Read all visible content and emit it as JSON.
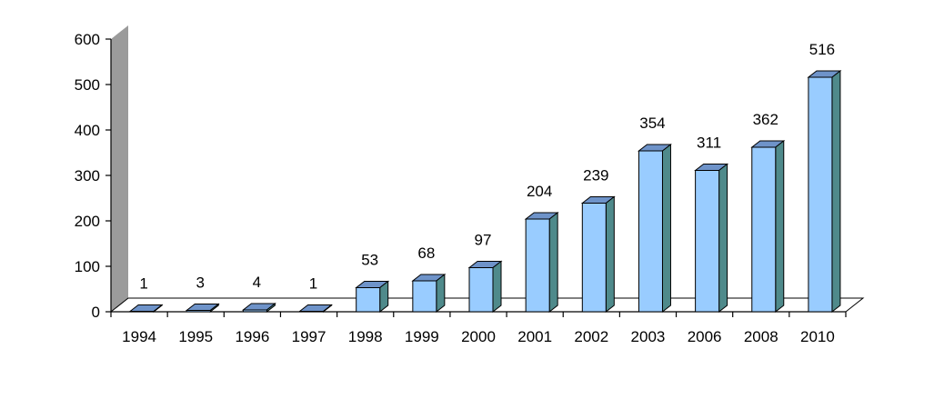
{
  "chart_data": {
    "type": "bar",
    "title": "",
    "xlabel": "",
    "ylabel": "",
    "categories": [
      "1994",
      "1995",
      "1996",
      "1997",
      "1998",
      "1999",
      "2000",
      "2001",
      "2002",
      "2003",
      "2006",
      "2008",
      "2010"
    ],
    "values": [
      1,
      3,
      4,
      1,
      53,
      68,
      97,
      204,
      239,
      354,
      311,
      362,
      516
    ],
    "ylim": [
      0,
      600
    ],
    "yticks": [
      0,
      100,
      200,
      300,
      400,
      500,
      600
    ],
    "ytick_labels": [
      "0",
      "100",
      "200",
      "300",
      "400",
      "500",
      "600"
    ],
    "data_labels": [
      "1",
      "3",
      "4",
      "1",
      "53",
      "68",
      "97",
      "204",
      "239",
      "354",
      "311",
      "362",
      "516"
    ],
    "grid": false,
    "legend": "none",
    "style": "3d",
    "colors": {
      "bar_front": "#99ccff",
      "bar_side": "#4f8a8b",
      "bar_top": "#6e93c9",
      "back_wall": "#9b9b9b",
      "outline": "#000000"
    }
  }
}
